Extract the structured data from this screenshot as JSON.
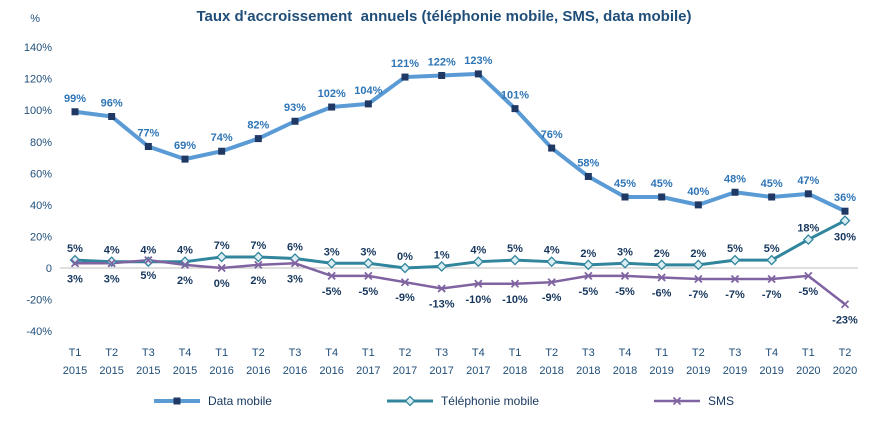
{
  "chart_data": {
    "type": "line",
    "title": "Taux d'accroissement  annuels (téléphonie mobile, SMS, data mobile)",
    "y_axis_unit_label": "%",
    "ylim": [
      -40,
      140
    ],
    "ytick_step": 20,
    "grid": false,
    "legend_position": "bottom",
    "axis_color": "#1F4E79",
    "zero_line_color": "#BFBFBF",
    "categories": [
      [
        "T1",
        "2015"
      ],
      [
        "T2",
        "2015"
      ],
      [
        "T3",
        "2015"
      ],
      [
        "T4",
        "2015"
      ],
      [
        "T1",
        "2016"
      ],
      [
        "T2",
        "2016"
      ],
      [
        "T3",
        "2016"
      ],
      [
        "T4",
        "2016"
      ],
      [
        "T1",
        "2017"
      ],
      [
        "T2",
        "2017"
      ],
      [
        "T3",
        "2017"
      ],
      [
        "T4",
        "2017"
      ],
      [
        "T1",
        "2018"
      ],
      [
        "T2",
        "2018"
      ],
      [
        "T3",
        "2018"
      ],
      [
        "T4",
        "2018"
      ],
      [
        "T1",
        "2019"
      ],
      [
        "T2",
        "2019"
      ],
      [
        "T3",
        "2019"
      ],
      [
        "T4",
        "2019"
      ],
      [
        "T1",
        "2020"
      ],
      [
        "T2",
        "2020"
      ]
    ],
    "series": [
      {
        "name": "Data mobile",
        "marker": "square",
        "line_color": "#5B9BD5",
        "marker_color": "#1F3864",
        "label_color": "#2E75B6",
        "values": [
          99,
          96,
          77,
          69,
          74,
          82,
          93,
          102,
          104,
          121,
          122,
          123,
          101,
          76,
          58,
          45,
          45,
          40,
          48,
          45,
          47,
          36
        ]
      },
      {
        "name": "Téléphonie mobile",
        "marker": "diamond",
        "line_color": "#31859C",
        "marker_color": "#31859C",
        "label_color": "#17375E",
        "values": [
          5,
          4,
          4,
          4,
          7,
          7,
          6,
          3,
          3,
          0,
          1,
          4,
          5,
          4,
          2,
          3,
          2,
          2,
          5,
          5,
          18,
          30
        ]
      },
      {
        "name": "SMS",
        "marker": "x",
        "line_color": "#8064A2",
        "marker_color": "#8064A2",
        "label_color": "#17375E",
        "values": [
          3,
          3,
          5,
          2,
          0,
          2,
          3,
          -5,
          -5,
          -9,
          -13,
          -10,
          -10,
          -9,
          -5,
          -5,
          -6,
          -7,
          -7,
          -7,
          -5,
          -23
        ]
      }
    ]
  }
}
